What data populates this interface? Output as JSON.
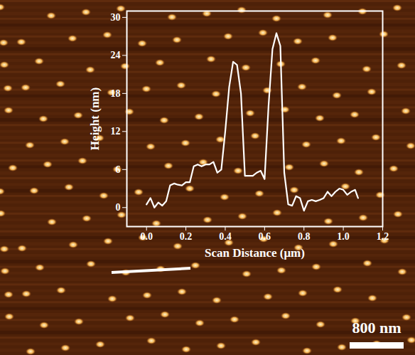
{
  "chart_data": {
    "type": "line",
    "x_label": "Scan Distance (μm)",
    "y_label": "Height (nm)",
    "annotations": [
      "800 nm"
    ],
    "color": "#ffffff",
    "x": [
      0.0,
      0.02,
      0.04,
      0.06,
      0.08,
      0.1,
      0.12,
      0.14,
      0.16,
      0.18,
      0.2,
      0.22,
      0.24,
      0.26,
      0.28,
      0.3,
      0.32,
      0.34,
      0.36,
      0.38,
      0.4,
      0.42,
      0.44,
      0.46,
      0.48,
      0.5,
      0.52,
      0.54,
      0.56,
      0.58,
      0.6,
      0.62,
      0.64,
      0.66,
      0.68,
      0.7,
      0.72,
      0.74,
      0.76,
      0.78,
      0.8,
      0.82,
      0.84,
      0.86,
      0.88,
      0.9,
      0.92,
      0.94,
      0.96,
      0.98,
      1.0,
      1.02,
      1.04,
      1.06,
      1.075
    ],
    "values": [
      0.5,
      1.5,
      0,
      0.8,
      0.3,
      1,
      3.5,
      3.8,
      3.6,
      3.5,
      4,
      4,
      6.5,
      6.8,
      6.5,
      6.8,
      6.8,
      7.2,
      5.5,
      6,
      12,
      19,
      23,
      22.5,
      18,
      5,
      5,
      5,
      5.5,
      5.8,
      4.5,
      16,
      25,
      27.5,
      25.5,
      5.5,
      0.5,
      0.3,
      1.8,
      1.5,
      -0.5,
      1,
      1.2,
      1,
      1.2,
      1.5,
      2.5,
      1.8,
      2.5,
      3,
      2.8,
      2,
      2.5,
      2.8,
      1.5
    ],
    "xlim": [
      -0.1,
      1.2
    ],
    "ylim": [
      -3,
      31
    ],
    "xticks": [
      {
        "value": 0,
        "label": "0.0"
      },
      {
        "value": 0.2,
        "label": "0.2"
      },
      {
        "value": 0.4,
        "label": "0.4"
      },
      {
        "value": 0.6,
        "label": "0.6"
      },
      {
        "value": 0.8,
        "label": "0.8"
      },
      {
        "value": 1,
        "label": "1.0"
      },
      {
        "value": 1.2,
        "label": "1.2"
      }
    ],
    "yticks": [
      0,
      6,
      12,
      18,
      24,
      30
    ],
    "grid": false
  }
}
